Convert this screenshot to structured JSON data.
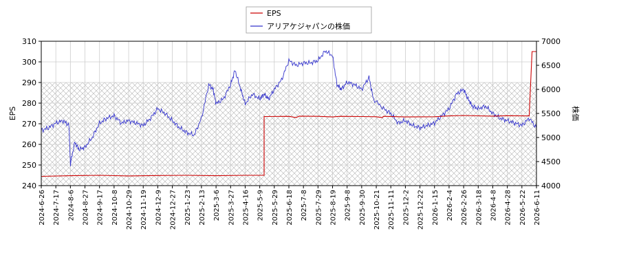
{
  "chart_data": {
    "type": "line",
    "title": "",
    "legend": {
      "placement": "top-center",
      "entries": [
        {
          "label": "EPS",
          "color": "#cc0000"
        },
        {
          "label": "アリアケジャパンの株価",
          "color": "#3333cc"
        }
      ]
    },
    "y_left": {
      "label": "EPS",
      "min": 240,
      "max": 310,
      "ticks": [
        240,
        250,
        260,
        270,
        280,
        290,
        300,
        310
      ]
    },
    "y_right": {
      "label": "株価",
      "min": 4000,
      "max": 7000,
      "ticks": [
        4000,
        4500,
        5000,
        5500,
        6000,
        6500,
        7000
      ]
    },
    "x_ticks": [
      "2024-6-26",
      "2024-7-17",
      "2024-8-6",
      "2024-8-27",
      "2024-9-17",
      "2024-10-8",
      "2024-10-29",
      "2024-11-19",
      "2024-12-9",
      "2024-12-27",
      "2025-1-23",
      "2025-2-13",
      "2025-3-6",
      "2025-3-27",
      "2025-4-16",
      "2025-5-9",
      "2025-5-29",
      "2025-6-18",
      "2025-7-8",
      "2025-7-29",
      "2025-8-19",
      "2025-9-8",
      "2025-9-30",
      "2025-10-21",
      "2025-11-11",
      "2025-12-2",
      "2025-12-22",
      "2026-1-15",
      "2026-2-4",
      "2026-2-26",
      "2026-3-18",
      "2026-4-8",
      "2026-4-28",
      "2026-5-22",
      "2026-6-11"
    ],
    "grid": true,
    "forecast_region": {
      "y_left_from": 240,
      "y_left_to": 290,
      "style": "hatched"
    },
    "series": [
      {
        "name": "EPS",
        "axis": "left",
        "color": "#cc0000",
        "points": [
          [
            0,
            244.5
          ],
          [
            2,
            244.8
          ],
          [
            4,
            245.0
          ],
          [
            6,
            244.7
          ],
          [
            8,
            244.9
          ],
          [
            10,
            245.0
          ],
          [
            12,
            244.8
          ],
          [
            14,
            245.0
          ],
          [
            15.3,
            245.0
          ],
          [
            15.3,
            273.5
          ],
          [
            17,
            273.6
          ],
          [
            17.5,
            273.0
          ],
          [
            17.7,
            273.7
          ],
          [
            19,
            273.6
          ],
          [
            20,
            273.3
          ],
          [
            20.5,
            273.6
          ],
          [
            22,
            273.5
          ],
          [
            23,
            273.4
          ],
          [
            23.4,
            273.0
          ],
          [
            23.5,
            273.6
          ],
          [
            25,
            273.3
          ],
          [
            27,
            273.4
          ],
          [
            28,
            273.8
          ],
          [
            29,
            274.0
          ],
          [
            31,
            273.7
          ],
          [
            32,
            273.9
          ],
          [
            33.5,
            273.8
          ],
          [
            33.7,
            305.0
          ],
          [
            35,
            305.0
          ]
        ]
      },
      {
        "name": "アリアケジャパンの株価",
        "axis": "right",
        "color": "#3333cc",
        "points": [
          [
            0,
            5150
          ],
          [
            0.5,
            5200
          ],
          [
            1,
            5300
          ],
          [
            1.5,
            5350
          ],
          [
            1.9,
            5250
          ],
          [
            2,
            4450
          ],
          [
            2.3,
            4900
          ],
          [
            2.6,
            4750
          ],
          [
            3,
            4800
          ],
          [
            3.5,
            5000
          ],
          [
            4,
            5300
          ],
          [
            4.5,
            5400
          ],
          [
            5,
            5450
          ],
          [
            5.5,
            5300
          ],
          [
            6,
            5350
          ],
          [
            6.5,
            5300
          ],
          [
            7,
            5250
          ],
          [
            7.5,
            5400
          ],
          [
            8,
            5600
          ],
          [
            8.5,
            5500
          ],
          [
            9,
            5350
          ],
          [
            9.5,
            5200
          ],
          [
            10,
            5100
          ],
          [
            10.5,
            5050
          ],
          [
            11,
            5400
          ],
          [
            11.5,
            6100
          ],
          [
            11.8,
            6000
          ],
          [
            12,
            5700
          ],
          [
            12.5,
            5800
          ],
          [
            13,
            6100
          ],
          [
            13.3,
            6400
          ],
          [
            13.7,
            6000
          ],
          [
            14,
            5700
          ],
          [
            14.5,
            5900
          ],
          [
            15,
            5800
          ],
          [
            15.3,
            5900
          ],
          [
            15.6,
            5800
          ],
          [
            16,
            6000
          ],
          [
            16.5,
            6200
          ],
          [
            17,
            6600
          ],
          [
            17.5,
            6500
          ],
          [
            18,
            6550
          ],
          [
            18.5,
            6550
          ],
          [
            19,
            6600
          ],
          [
            19.5,
            6800
          ],
          [
            20,
            6700
          ],
          [
            20.3,
            6100
          ],
          [
            20.6,
            6000
          ],
          [
            21,
            6150
          ],
          [
            21.5,
            6100
          ],
          [
            22,
            6000
          ],
          [
            22.5,
            6250
          ],
          [
            22.8,
            5800
          ],
          [
            23.5,
            5600
          ],
          [
            24,
            5500
          ],
          [
            24.5,
            5300
          ],
          [
            25,
            5350
          ],
          [
            25.5,
            5250
          ],
          [
            26,
            5200
          ],
          [
            26.5,
            5250
          ],
          [
            27,
            5300
          ],
          [
            27.5,
            5450
          ],
          [
            28,
            5600
          ],
          [
            28.5,
            5900
          ],
          [
            29,
            6000
          ],
          [
            29.3,
            5800
          ],
          [
            29.6,
            5650
          ],
          [
            30,
            5600
          ],
          [
            30.5,
            5650
          ],
          [
            31,
            5500
          ],
          [
            31.5,
            5400
          ],
          [
            32,
            5350
          ],
          [
            32.5,
            5300
          ],
          [
            33,
            5250
          ],
          [
            33.5,
            5400
          ],
          [
            34,
            5200
          ],
          [
            34.5,
            5050
          ],
          [
            35,
            4950
          ]
        ]
      }
    ]
  }
}
